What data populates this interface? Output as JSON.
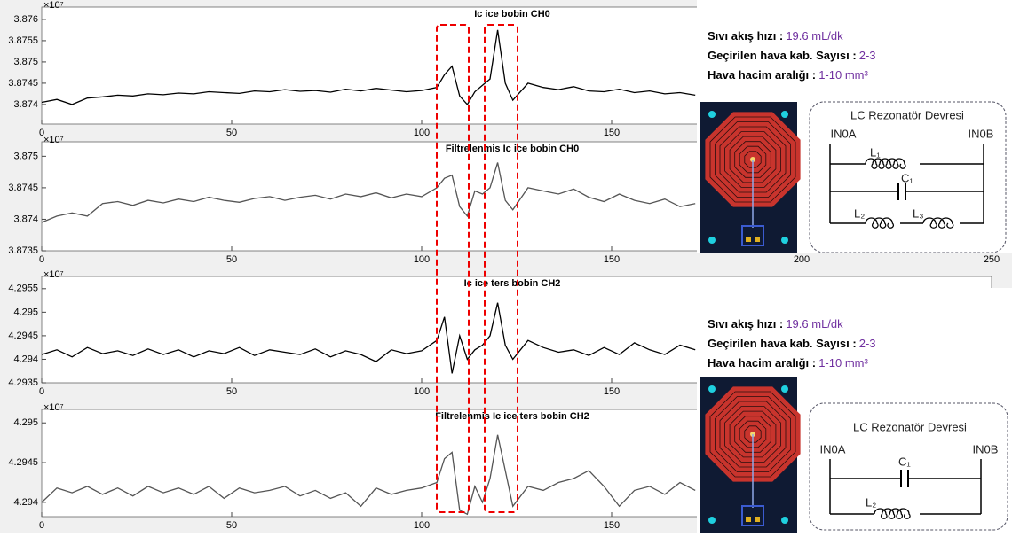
{
  "chart_data": [
    {
      "type": "line",
      "title": "Ic ice bobin CH0",
      "exponent_label": "×10⁷",
      "color": "#000000",
      "xlim": [
        0,
        250
      ],
      "ylim": [
        3.87354,
        3.87629
      ],
      "xticks": [
        0,
        50,
        100,
        150
      ],
      "yticks": [
        3.874,
        3.8745,
        3.875,
        3.8755,
        3.876
      ],
      "x": [
        0,
        4,
        8,
        12,
        16,
        20,
        24,
        28,
        32,
        36,
        40,
        44,
        48,
        52,
        56,
        60,
        64,
        68,
        72,
        76,
        80,
        84,
        88,
        92,
        96,
        100,
        104,
        106,
        108,
        110,
        112,
        114,
        116,
        118,
        120,
        122,
        124,
        128,
        132,
        136,
        140,
        144,
        148,
        152,
        156,
        160,
        164,
        168,
        172
      ],
      "values": [
        3.87405,
        3.87412,
        3.874,
        3.87415,
        3.87418,
        3.87422,
        3.8742,
        3.87425,
        3.87423,
        3.87427,
        3.87425,
        3.8743,
        3.87428,
        3.87426,
        3.87432,
        3.8743,
        3.87435,
        3.87431,
        3.87433,
        3.87429,
        3.87436,
        3.87432,
        3.87438,
        3.87434,
        3.8743,
        3.87433,
        3.8744,
        3.8747,
        3.8749,
        3.8742,
        3.874,
        3.8743,
        3.87445,
        3.8746,
        3.87575,
        3.8745,
        3.8741,
        3.8745,
        3.8744,
        3.87435,
        3.87442,
        3.87432,
        3.8743,
        3.87436,
        3.87428,
        3.87432,
        3.87425,
        3.87428,
        3.87422
      ]
    },
    {
      "type": "line",
      "title": "Filtrelenmis Ic ice bobin CH0",
      "exponent_label": "×10⁷",
      "color": "#555555",
      "xlim": [
        0,
        250
      ],
      "ylim": [
        3.8735,
        3.87523
      ],
      "xticks": [
        0,
        50,
        100,
        150,
        200,
        250
      ],
      "yticks": [
        3.8735,
        3.874,
        3.8745,
        3.875
      ],
      "x": [
        0,
        4,
        8,
        12,
        16,
        20,
        24,
        28,
        32,
        36,
        40,
        44,
        48,
        52,
        56,
        60,
        64,
        68,
        72,
        76,
        80,
        84,
        88,
        92,
        96,
        100,
        104,
        106,
        108,
        110,
        112,
        114,
        116,
        118,
        120,
        122,
        124,
        128,
        132,
        136,
        140,
        144,
        148,
        152,
        156,
        160,
        164,
        168,
        172
      ],
      "values": [
        3.87395,
        3.87405,
        3.8741,
        3.87405,
        3.87425,
        3.87428,
        3.87422,
        3.8743,
        3.87426,
        3.87432,
        3.87428,
        3.87435,
        3.8743,
        3.87427,
        3.87433,
        3.87436,
        3.8743,
        3.87435,
        3.87438,
        3.87432,
        3.8744,
        3.87436,
        3.87442,
        3.87434,
        3.8744,
        3.87436,
        3.8745,
        3.87465,
        3.8747,
        3.8742,
        3.87405,
        3.87445,
        3.8744,
        3.8745,
        3.8749,
        3.8743,
        3.87415,
        3.8745,
        3.87445,
        3.8744,
        3.87448,
        3.87435,
        3.87428,
        3.8744,
        3.8743,
        3.87425,
        3.87432,
        3.8742,
        3.87425
      ]
    },
    {
      "type": "line",
      "title": "Ic ice ters bobin CH2",
      "exponent_label": "×10⁷",
      "color": "#000000",
      "xlim": [
        0,
        250
      ],
      "ylim": [
        4.2935,
        4.29576
      ],
      "xticks": [
        0,
        50,
        100,
        150
      ],
      "yticks": [
        4.2935,
        4.294,
        4.2945,
        4.295,
        4.2955
      ],
      "x": [
        0,
        4,
        8,
        12,
        16,
        20,
        24,
        28,
        32,
        36,
        40,
        44,
        48,
        52,
        56,
        60,
        64,
        68,
        72,
        76,
        80,
        84,
        88,
        92,
        96,
        100,
        104,
        106,
        108,
        110,
        112,
        114,
        116,
        118,
        120,
        122,
        124,
        128,
        132,
        136,
        140,
        144,
        148,
        152,
        156,
        160,
        164,
        168,
        172
      ],
      "values": [
        4.2941,
        4.2942,
        4.29405,
        4.29425,
        4.29412,
        4.29418,
        4.29408,
        4.29422,
        4.2941,
        4.2942,
        4.29405,
        4.29418,
        4.29412,
        4.29425,
        4.29408,
        4.2942,
        4.29415,
        4.2941,
        4.29422,
        4.29405,
        4.29418,
        4.2941,
        4.29395,
        4.2942,
        4.29412,
        4.29418,
        4.2944,
        4.2949,
        4.2937,
        4.2945,
        4.294,
        4.2942,
        4.2943,
        4.2945,
        4.2952,
        4.2943,
        4.294,
        4.2944,
        4.29425,
        4.29415,
        4.2942,
        4.29408,
        4.29425,
        4.2941,
        4.29435,
        4.2942,
        4.2941,
        4.2943,
        4.2942
      ]
    },
    {
      "type": "line",
      "title": "Filtrelenmis Ic ice ters bobin CH2",
      "exponent_label": "×10⁷",
      "color": "#555555",
      "xlim": [
        0,
        250
      ],
      "ylim": [
        4.29382,
        4.29517
      ],
      "xticks": [
        0,
        50,
        100,
        150
      ],
      "yticks": [
        4.294,
        4.2945,
        4.295
      ],
      "x": [
        0,
        4,
        8,
        12,
        16,
        20,
        24,
        28,
        32,
        36,
        40,
        44,
        48,
        52,
        56,
        60,
        64,
        68,
        72,
        76,
        80,
        84,
        88,
        92,
        96,
        100,
        104,
        106,
        108,
        110,
        112,
        114,
        116,
        118,
        120,
        122,
        124,
        128,
        132,
        136,
        140,
        144,
        148,
        152,
        156,
        160,
        164,
        168,
        172
      ],
      "values": [
        4.294,
        4.29418,
        4.29412,
        4.2942,
        4.2941,
        4.29418,
        4.29408,
        4.2942,
        4.29412,
        4.29418,
        4.2941,
        4.2942,
        4.29405,
        4.29418,
        4.29412,
        4.29415,
        4.2942,
        4.29408,
        4.29415,
        4.29405,
        4.29412,
        4.29395,
        4.29418,
        4.2941,
        4.29415,
        4.29418,
        4.29425,
        4.29455,
        4.29463,
        4.2939,
        4.29385,
        4.2942,
        4.294,
        4.2943,
        4.29485,
        4.2944,
        4.29395,
        4.2942,
        4.29415,
        4.29425,
        4.2943,
        4.2944,
        4.2942,
        4.29395,
        4.29415,
        4.2942,
        4.2941,
        4.29425,
        4.29415
      ]
    }
  ],
  "info_panels": [
    {
      "params": [
        {
          "label": "Sıvı akış hızı :",
          "value": "19.6 mL/dk"
        },
        {
          "label": "Geçirilen hava kab. Sayısı :",
          "value": "2-3"
        },
        {
          "label": "Hava hacim aralığı :",
          "value": "1-10 mm³"
        }
      ],
      "circuit": {
        "title": "LC Rezonatör Devresi",
        "left": "IN0A",
        "right": "IN0B",
        "components": [
          "L₁",
          "C₁",
          "L₂",
          "L₃"
        ]
      }
    },
    {
      "params": [
        {
          "label": "Sıvı akış hızı :",
          "value": "19.6 mL/dk"
        },
        {
          "label": "Geçirilen hava kab. Sayısı :",
          "value": "2-3"
        },
        {
          "label": "Hava hacim aralığı :",
          "value": "1-10 mm³"
        }
      ],
      "circuit": {
        "title": "LC Rezonatör Devresi",
        "left": "IN0A",
        "right": "IN0B",
        "components": [
          "C₁",
          "L₂"
        ]
      }
    }
  ]
}
